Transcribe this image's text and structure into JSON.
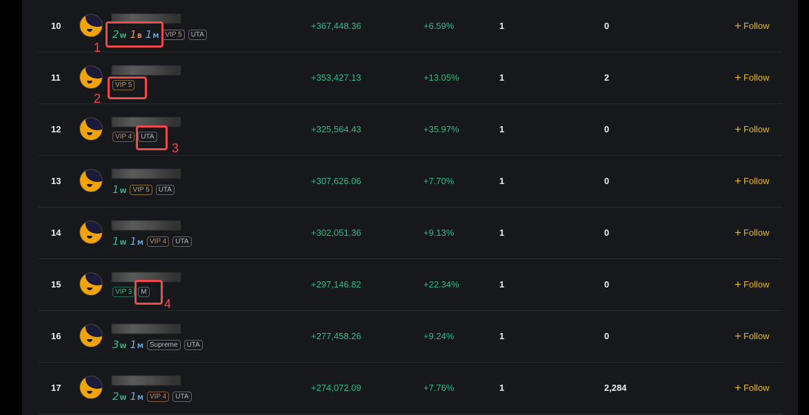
{
  "rows": [
    {
      "rank": "10",
      "achievements": [
        {
          "n": "2",
          "u": "W",
          "c": "w"
        },
        {
          "n": "1",
          "u": "B",
          "c": "b"
        },
        {
          "n": "1",
          "u": "M",
          "c": "m"
        }
      ],
      "badges": [
        {
          "label": "VIP 5",
          "cls": "vip5"
        },
        {
          "label": "UTA",
          "cls": ""
        }
      ],
      "pnl": "+367,448.36",
      "roi": "+6.59%",
      "col1": "1",
      "col2": "0",
      "follow": "Follow"
    },
    {
      "rank": "11",
      "achievements": [],
      "badges": [
        {
          "label": "VIP 5",
          "cls": "vip5"
        }
      ],
      "pnl": "+353,427.13",
      "roi": "+13.05%",
      "col1": "1",
      "col2": "2",
      "follow": "Follow"
    },
    {
      "rank": "12",
      "achievements": [],
      "badges": [
        {
          "label": "VIP 4",
          "cls": "vip4"
        },
        {
          "label": "UTA",
          "cls": ""
        }
      ],
      "pnl": "+325,564.43",
      "roi": "+35.97%",
      "col1": "1",
      "col2": "0",
      "follow": "Follow"
    },
    {
      "rank": "13",
      "achievements": [
        {
          "n": "1",
          "u": "W",
          "c": "w"
        }
      ],
      "badges": [
        {
          "label": "VIP 5",
          "cls": "vip5"
        },
        {
          "label": "UTA",
          "cls": ""
        }
      ],
      "pnl": "+307,626.06",
      "roi": "+7.70%",
      "col1": "1",
      "col2": "0",
      "follow": "Follow"
    },
    {
      "rank": "14",
      "achievements": [
        {
          "n": "1",
          "u": "W",
          "c": "w"
        },
        {
          "n": "1",
          "u": "M",
          "c": "m"
        }
      ],
      "badges": [
        {
          "label": "VIP 4",
          "cls": "vip4"
        },
        {
          "label": "UTA",
          "cls": ""
        }
      ],
      "pnl": "+302,051.36",
      "roi": "+9.13%",
      "col1": "1",
      "col2": "0",
      "follow": "Follow"
    },
    {
      "rank": "15",
      "achievements": [],
      "badges": [
        {
          "label": "VIP 3",
          "cls": "vip3"
        },
        {
          "label": "M",
          "cls": ""
        }
      ],
      "pnl": "+297,146.82",
      "roi": "+22.34%",
      "col1": "1",
      "col2": "0",
      "follow": "Follow"
    },
    {
      "rank": "16",
      "achievements": [
        {
          "n": "3",
          "u": "W",
          "c": "w"
        },
        {
          "n": "1",
          "u": "M",
          "c": "m"
        }
      ],
      "badges": [
        {
          "label": "Supreme",
          "cls": ""
        },
        {
          "label": "UTA",
          "cls": ""
        }
      ],
      "pnl": "+277,458.26",
      "roi": "+9.24%",
      "col1": "1",
      "col2": "0",
      "follow": "Follow"
    },
    {
      "rank": "17",
      "achievements": [
        {
          "n": "2",
          "u": "W",
          "c": "w"
        },
        {
          "n": "1",
          "u": "M",
          "c": "m"
        }
      ],
      "badges": [
        {
          "label": "VIP 4",
          "cls": "vip4"
        },
        {
          "label": "UTA",
          "cls": ""
        }
      ],
      "pnl": "+274,072.09",
      "roi": "+7.76%",
      "col1": "1",
      "col2": "2,284",
      "follow": "Follow"
    }
  ],
  "annotations": [
    "1",
    "2",
    "3",
    "4"
  ],
  "colors": {
    "positive": "#2ebd85",
    "accent": "#f0b90b",
    "annotation": "#f04a4a",
    "background": "#17181c"
  }
}
